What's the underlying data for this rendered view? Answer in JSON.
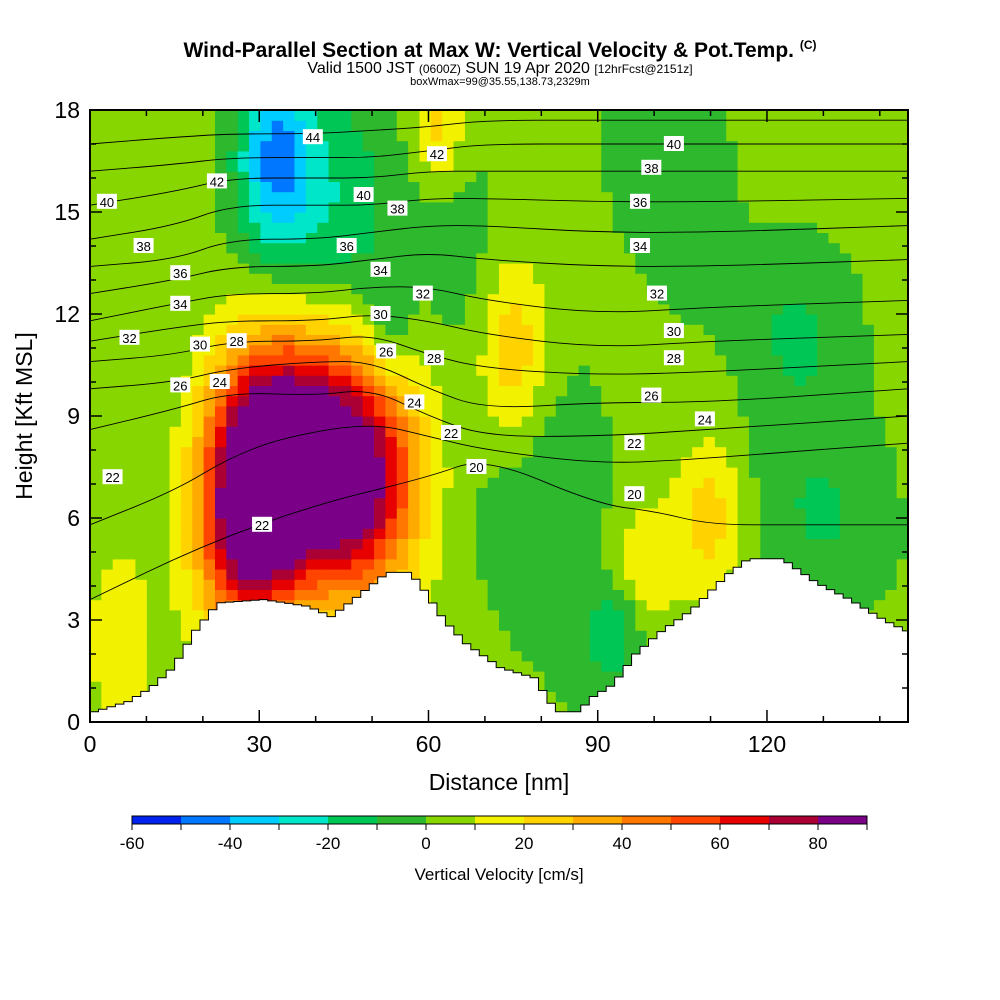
{
  "title": {
    "main": "Wind-Parallel Section at Max W: Vertical Velocity & Pot.Temp.",
    "copyright": "(C)",
    "valid_prefix": "Valid 1500 JST",
    "valid_utc": "(0600Z)",
    "valid_date": "SUN 19 Apr 2020",
    "forecast": "[12hrFcst@2151z]",
    "boxwmax": "boxWmax=99@35.55,138.73,2329m"
  },
  "chart_data": {
    "type": "heatmap",
    "xlabel": "Distance [nm]",
    "ylabel": "Height [Kft MSL]",
    "xlim": [
      0,
      145
    ],
    "ylim": [
      0,
      18
    ],
    "x_ticks": [
      0,
      30,
      60,
      90,
      120
    ],
    "y_ticks": [
      0,
      3,
      6,
      9,
      12,
      15,
      18
    ],
    "colorbar": {
      "label": "Vertical Velocity [cm/s]",
      "min": -60,
      "max": 90,
      "step": 10,
      "tick_labels": [
        "-60",
        "-40",
        "-20",
        "0",
        "20",
        "40",
        "60",
        "80"
      ],
      "tick_values": [
        -60,
        -40,
        -20,
        0,
        20,
        40,
        60,
        80
      ],
      "colors": [
        "#0022ee",
        "#0077ff",
        "#00ccff",
        "#00e6c8",
        "#00c656",
        "#2eb82e",
        "#88d600",
        "#f2f200",
        "#ffd200",
        "#ffaa00",
        "#ff7700",
        "#ff4400",
        "#e60000",
        "#aa0033",
        "#7a0088"
      ]
    },
    "terrain": [
      [
        0,
        0.3
      ],
      [
        6,
        0.6
      ],
      [
        10,
        1.0
      ],
      [
        14,
        1.6
      ],
      [
        18,
        2.7
      ],
      [
        22,
        3.5
      ],
      [
        30,
        3.6
      ],
      [
        38,
        3.4
      ],
      [
        42,
        3.1
      ],
      [
        46,
        3.6
      ],
      [
        52,
        4.4
      ],
      [
        56,
        4.4
      ],
      [
        58,
        4.0
      ],
      [
        62,
        3.0
      ],
      [
        66,
        2.3
      ],
      [
        72,
        1.6
      ],
      [
        78,
        1.3
      ],
      [
        82,
        0.3
      ],
      [
        86,
        0.3
      ],
      [
        88,
        0.7
      ],
      [
        92,
        1.1
      ],
      [
        96,
        2.0
      ],
      [
        100,
        2.6
      ],
      [
        106,
        3.3
      ],
      [
        112,
        4.3
      ],
      [
        116,
        4.8
      ],
      [
        122,
        4.8
      ],
      [
        128,
        4.1
      ],
      [
        134,
        3.6
      ],
      [
        140,
        3.0
      ],
      [
        145,
        2.6
      ]
    ],
    "velocity_field": [
      {
        "x": 35,
        "y": 7.5,
        "value": 80,
        "sx": 7,
        "sy": 2.2
      },
      {
        "x": 48,
        "y": 7.0,
        "value": 65,
        "sx": 7,
        "sy": 2.4
      },
      {
        "x": 28,
        "y": 7.2,
        "value": 50,
        "sx": 6,
        "sy": 2.3
      },
      {
        "x": 40,
        "y": 8.5,
        "value": 25,
        "sx": 14,
        "sy": 3.0
      },
      {
        "x": 27,
        "y": 4.8,
        "value": 35,
        "sx": 6,
        "sy": 1.8
      },
      {
        "x": 75,
        "y": 10.8,
        "value": 28,
        "sx": 4.5,
        "sy": 2.0
      },
      {
        "x": 110,
        "y": 6.0,
        "value": 22,
        "sx": 4,
        "sy": 1.6
      },
      {
        "x": 98,
        "y": 4.5,
        "value": 18,
        "sx": 5,
        "sy": 1.5
      },
      {
        "x": 5,
        "y": 2.5,
        "value": 15,
        "sx": 4,
        "sy": 2.0
      },
      {
        "x": 33,
        "y": 16.5,
        "value": -45,
        "sx": 5,
        "sy": 2.2
      },
      {
        "x": 45,
        "y": 14.5,
        "value": -20,
        "sx": 6,
        "sy": 2.5
      },
      {
        "x": 53,
        "y": 11.5,
        "value": -18,
        "sx": 3,
        "sy": 1.5
      },
      {
        "x": 82,
        "y": 6.0,
        "value": -12,
        "sx": 9,
        "sy": 3.0
      },
      {
        "x": 93,
        "y": 2.7,
        "value": -22,
        "sx": 3,
        "sy": 1.0
      },
      {
        "x": 125,
        "y": 11.5,
        "value": -12,
        "sx": 6,
        "sy": 1.8
      },
      {
        "x": 130,
        "y": 6.0,
        "value": -12,
        "sx": 8,
        "sy": 1.8
      },
      {
        "x": 65,
        "y": 14.0,
        "value": -8,
        "sx": 6,
        "sy": 3.0
      },
      {
        "x": 105,
        "y": 15.0,
        "value": -6,
        "sx": 7,
        "sy": 3.0
      },
      {
        "x": 62,
        "y": 17.5,
        "value": 22,
        "sx": 3,
        "sy": 1.2
      }
    ],
    "theta_isentropes": [
      {
        "label": "20",
        "points": [
          [
            0,
            3.6
          ],
          [
            20,
            5.2
          ],
          [
            40,
            6.4
          ],
          [
            60,
            7.2
          ],
          [
            70,
            7.8
          ],
          [
            90,
            6.4
          ],
          [
            100,
            6.2
          ],
          [
            110,
            5.8
          ],
          [
            125,
            5.8
          ],
          [
            145,
            5.8
          ]
        ]
      },
      {
        "label": "22",
        "points": [
          [
            0,
            5.8
          ],
          [
            15,
            6.8
          ],
          [
            25,
            7.8
          ],
          [
            35,
            8.4
          ],
          [
            50,
            8.8
          ],
          [
            60,
            8.4
          ],
          [
            70,
            8.0
          ],
          [
            90,
            7.6
          ],
          [
            105,
            7.7
          ],
          [
            120,
            7.9
          ],
          [
            145,
            8.2
          ]
        ]
      },
      {
        "label": "24",
        "points": [
          [
            0,
            8.6
          ],
          [
            15,
            9.2
          ],
          [
            25,
            9.7
          ],
          [
            40,
            9.6
          ],
          [
            50,
            9.8
          ],
          [
            60,
            9.0
          ],
          [
            70,
            8.4
          ],
          [
            90,
            8.4
          ],
          [
            110,
            8.6
          ],
          [
            145,
            9.0
          ]
        ]
      },
      {
        "label": "26",
        "points": [
          [
            0,
            9.8
          ],
          [
            15,
            10.0
          ],
          [
            25,
            10.4
          ],
          [
            40,
            10.6
          ],
          [
            50,
            10.6
          ],
          [
            60,
            9.8
          ],
          [
            70,
            9.2
          ],
          [
            90,
            9.4
          ],
          [
            110,
            9.4
          ],
          [
            145,
            9.8
          ]
        ]
      },
      {
        "label": "28",
        "points": [
          [
            0,
            10.6
          ],
          [
            15,
            10.8
          ],
          [
            25,
            11.2
          ],
          [
            40,
            11.2
          ],
          [
            50,
            11.4
          ],
          [
            60,
            10.8
          ],
          [
            70,
            10.4
          ],
          [
            90,
            10.2
          ],
          [
            110,
            10.3
          ],
          [
            145,
            10.6
          ]
        ]
      },
      {
        "label": "30",
        "points": [
          [
            0,
            11.2
          ],
          [
            15,
            11.6
          ],
          [
            25,
            11.8
          ],
          [
            40,
            11.8
          ],
          [
            50,
            12.0
          ],
          [
            60,
            11.8
          ],
          [
            70,
            11.4
          ],
          [
            90,
            11.0
          ],
          [
            110,
            11.2
          ],
          [
            145,
            11.4
          ]
        ]
      },
      {
        "label": "32",
        "points": [
          [
            0,
            11.8
          ],
          [
            15,
            12.3
          ],
          [
            25,
            12.6
          ],
          [
            40,
            12.6
          ],
          [
            50,
            12.8
          ],
          [
            60,
            12.8
          ],
          [
            70,
            12.4
          ],
          [
            90,
            12.0
          ],
          [
            110,
            12.2
          ],
          [
            145,
            12.4
          ]
        ]
      },
      {
        "label": "34",
        "points": [
          [
            0,
            12.6
          ],
          [
            15,
            13.0
          ],
          [
            25,
            13.4
          ],
          [
            40,
            13.4
          ],
          [
            50,
            13.6
          ],
          [
            60,
            13.8
          ],
          [
            70,
            13.6
          ],
          [
            90,
            13.4
          ],
          [
            110,
            13.4
          ],
          [
            145,
            13.6
          ]
        ]
      },
      {
        "label": "36",
        "points": [
          [
            0,
            13.4
          ],
          [
            15,
            13.6
          ],
          [
            25,
            14.2
          ],
          [
            40,
            14.2
          ],
          [
            50,
            14.4
          ],
          [
            60,
            14.6
          ],
          [
            70,
            14.6
          ],
          [
            90,
            14.4
          ],
          [
            110,
            14.4
          ],
          [
            145,
            14.6
          ]
        ]
      },
      {
        "label": "38",
        "points": [
          [
            0,
            14.2
          ],
          [
            15,
            14.6
          ],
          [
            25,
            15.2
          ],
          [
            40,
            15.2
          ],
          [
            50,
            15.2
          ],
          [
            60,
            15.4
          ],
          [
            70,
            15.4
          ],
          [
            90,
            15.3
          ],
          [
            110,
            15.3
          ],
          [
            145,
            15.4
          ]
        ]
      },
      {
        "label": "40",
        "points": [
          [
            0,
            15.2
          ],
          [
            15,
            15.6
          ],
          [
            25,
            16.0
          ],
          [
            40,
            16.0
          ],
          [
            50,
            16.0
          ],
          [
            60,
            16.2
          ],
          [
            70,
            16.2
          ],
          [
            90,
            16.2
          ],
          [
            110,
            16.2
          ],
          [
            145,
            16.2
          ]
        ]
      },
      {
        "label": "42",
        "points": [
          [
            0,
            16.2
          ],
          [
            15,
            16.4
          ],
          [
            25,
            16.6
          ],
          [
            40,
            16.6
          ],
          [
            50,
            16.6
          ],
          [
            60,
            16.8
          ],
          [
            70,
            17.0
          ],
          [
            90,
            17.0
          ],
          [
            110,
            17.0
          ],
          [
            145,
            17.0
          ]
        ]
      },
      {
        "label": "44",
        "points": [
          [
            0,
            17.0
          ],
          [
            15,
            17.2
          ],
          [
            25,
            17.3
          ],
          [
            40,
            17.3
          ],
          [
            50,
            17.4
          ],
          [
            60,
            17.5
          ],
          [
            70,
            17.7
          ],
          [
            90,
            17.7
          ],
          [
            110,
            17.7
          ],
          [
            145,
            17.7
          ]
        ]
      }
    ],
    "contour_labels": [
      {
        "text": "44",
        "x": 39.5,
        "y": 17.2
      },
      {
        "text": "42",
        "x": 61.5,
        "y": 16.7
      },
      {
        "text": "42",
        "x": 22.5,
        "y": 15.9
      },
      {
        "text": "40",
        "x": 3.0,
        "y": 15.3
      },
      {
        "text": "40",
        "x": 48.5,
        "y": 15.5
      },
      {
        "text": "40",
        "x": 103.5,
        "y": 17.0
      },
      {
        "text": "38",
        "x": 9.5,
        "y": 14.0
      },
      {
        "text": "38",
        "x": 54.5,
        "y": 15.1
      },
      {
        "text": "38",
        "x": 99.5,
        "y": 16.3
      },
      {
        "text": "36",
        "x": 16.0,
        "y": 13.2
      },
      {
        "text": "36",
        "x": 45.5,
        "y": 14.0
      },
      {
        "text": "36",
        "x": 97.5,
        "y": 15.3
      },
      {
        "text": "34",
        "x": 16.0,
        "y": 12.3
      },
      {
        "text": "34",
        "x": 51.5,
        "y": 13.3
      },
      {
        "text": "34",
        "x": 97.5,
        "y": 14.0
      },
      {
        "text": "32",
        "x": 7.0,
        "y": 11.3
      },
      {
        "text": "32",
        "x": 59.0,
        "y": 12.6
      },
      {
        "text": "32",
        "x": 100.5,
        "y": 12.6
      },
      {
        "text": "30",
        "x": 19.5,
        "y": 11.1
      },
      {
        "text": "30",
        "x": 51.5,
        "y": 12.0
      },
      {
        "text": "30",
        "x": 103.5,
        "y": 11.5
      },
      {
        "text": "28",
        "x": 26.0,
        "y": 11.2
      },
      {
        "text": "28",
        "x": 61.0,
        "y": 10.7
      },
      {
        "text": "28",
        "x": 103.5,
        "y": 10.7
      },
      {
        "text": "26",
        "x": 16.0,
        "y": 9.9
      },
      {
        "text": "26",
        "x": 52.5,
        "y": 10.9
      },
      {
        "text": "26",
        "x": 99.5,
        "y": 9.6
      },
      {
        "text": "24",
        "x": 23.0,
        "y": 10.0
      },
      {
        "text": "24",
        "x": 57.5,
        "y": 9.4
      },
      {
        "text": "24",
        "x": 109.0,
        "y": 8.9
      },
      {
        "text": "22",
        "x": 4.0,
        "y": 7.2
      },
      {
        "text": "22",
        "x": 64.0,
        "y": 8.5
      },
      {
        "text": "22",
        "x": 96.5,
        "y": 8.2
      },
      {
        "text": "22",
        "x": 30.5,
        "y": 5.8
      },
      {
        "text": "20",
        "x": 68.5,
        "y": 7.5
      },
      {
        "text": "20",
        "x": 96.5,
        "y": 6.7
      }
    ]
  }
}
